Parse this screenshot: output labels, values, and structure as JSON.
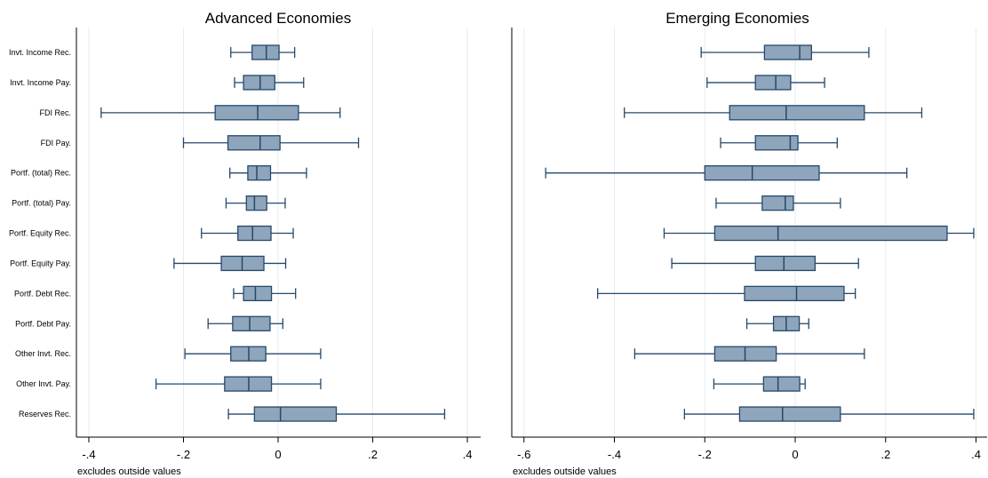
{
  "chart_data": [
    {
      "type": "boxplot",
      "title": "Advanced Economies",
      "note": "excludes outside values",
      "categories": [
        "Invt. Income Rec.",
        "Invt. Income Pay.",
        "FDI Rec.",
        "FDI Pay.",
        "Portf. (total) Rec.",
        "Portf. (total) Pay.",
        "Portf. Equity Rec.",
        "Portf. Equity Pay.",
        "Portf. Debt Rec.",
        "Portf. Debt Pay.",
        "Other Invt. Rec.",
        "Other Invt. Pay.",
        "Reserves Rec."
      ],
      "boxes": [
        {
          "whisker_low": -0.1,
          "q1": -0.055,
          "median": -0.025,
          "q3": 0.002,
          "whisker_high": 0.035
        },
        {
          "whisker_low": -0.092,
          "q1": -0.073,
          "median": -0.038,
          "q3": -0.007,
          "whisker_high": 0.054
        },
        {
          "whisker_low": -0.374,
          "q1": -0.133,
          "median": -0.043,
          "q3": 0.043,
          "whisker_high": 0.131
        },
        {
          "whisker_low": -0.2,
          "q1": -0.106,
          "median": -0.038,
          "q3": 0.004,
          "whisker_high": 0.17
        },
        {
          "whisker_low": -0.102,
          "q1": -0.064,
          "median": -0.045,
          "q3": -0.016,
          "whisker_high": 0.06
        },
        {
          "whisker_low": -0.11,
          "q1": -0.067,
          "median": -0.05,
          "q3": -0.024,
          "whisker_high": 0.015
        },
        {
          "whisker_low": -0.162,
          "q1": -0.085,
          "median": -0.054,
          "q3": -0.015,
          "whisker_high": 0.032
        },
        {
          "whisker_low": -0.22,
          "q1": -0.12,
          "median": -0.076,
          "q3": -0.03,
          "whisker_high": 0.016
        },
        {
          "whisker_low": -0.094,
          "q1": -0.073,
          "median": -0.048,
          "q3": -0.014,
          "whisker_high": 0.037
        },
        {
          "whisker_low": -0.148,
          "q1": -0.096,
          "median": -0.06,
          "q3": -0.017,
          "whisker_high": 0.01
        },
        {
          "whisker_low": -0.197,
          "q1": -0.1,
          "median": -0.062,
          "q3": -0.026,
          "whisker_high": 0.09
        },
        {
          "whisker_low": -0.258,
          "q1": -0.113,
          "median": -0.062,
          "q3": -0.014,
          "whisker_high": 0.09
        },
        {
          "whisker_low": -0.105,
          "q1": -0.05,
          "median": 0.005,
          "q3": 0.123,
          "whisker_high": 0.352
        }
      ],
      "x_ticks": [
        -0.4,
        -0.2,
        0,
        0.2,
        0.4
      ],
      "x_tick_labels": [
        "-.4",
        "-.2",
        "0",
        ".2",
        ".4"
      ],
      "xlim": [
        -0.42,
        0.42
      ],
      "grid": true
    },
    {
      "type": "boxplot",
      "title": "Emerging Economies",
      "note": "excludes outside values",
      "categories": [
        "Invt. Income Rec.",
        "Invt. Income Pay.",
        "FDI Rec.",
        "FDI Pay.",
        "Portf. (total) Rec.",
        "Portf. (total) Pay.",
        "Portf. Equity Rec.",
        "Portf. Equity Pay.",
        "Portf. Debt Rec.",
        "Portf. Debt Pay.",
        "Other Invt. Rec.",
        "Other Invt. Pay.",
        "Reserves Rec."
      ],
      "boxes": [
        {
          "whisker_low": -0.208,
          "q1": -0.068,
          "median": 0.01,
          "q3": 0.036,
          "whisker_high": 0.163
        },
        {
          "whisker_low": -0.195,
          "q1": -0.088,
          "median": -0.043,
          "q3": -0.01,
          "whisker_high": 0.065
        },
        {
          "whisker_low": -0.378,
          "q1": -0.145,
          "median": -0.02,
          "q3": 0.153,
          "whisker_high": 0.28
        },
        {
          "whisker_low": -0.165,
          "q1": -0.088,
          "median": -0.011,
          "q3": 0.006,
          "whisker_high": 0.093
        },
        {
          "whisker_low": -0.552,
          "q1": -0.2,
          "median": -0.095,
          "q3": 0.053,
          "whisker_high": 0.247
        },
        {
          "whisker_low": -0.175,
          "q1": -0.073,
          "median": -0.022,
          "q3": -0.004,
          "whisker_high": 0.1
        },
        {
          "whisker_low": -0.29,
          "q1": -0.178,
          "median": -0.038,
          "q3": 0.336,
          "whisker_high": 0.395
        },
        {
          "whisker_low": -0.273,
          "q1": -0.088,
          "median": -0.025,
          "q3": 0.044,
          "whisker_high": 0.14
        },
        {
          "whisker_low": -0.437,
          "q1": -0.112,
          "median": 0.003,
          "q3": 0.108,
          "whisker_high": 0.133
        },
        {
          "whisker_low": -0.107,
          "q1": -0.048,
          "median": -0.02,
          "q3": 0.009,
          "whisker_high": 0.03
        },
        {
          "whisker_low": -0.355,
          "q1": -0.178,
          "median": -0.111,
          "q3": -0.042,
          "whisker_high": 0.153
        },
        {
          "whisker_low": -0.18,
          "q1": -0.07,
          "median": -0.038,
          "q3": 0.01,
          "whisker_high": 0.022
        },
        {
          "whisker_low": -0.245,
          "q1": -0.123,
          "median": -0.028,
          "q3": 0.1,
          "whisker_high": 0.395
        }
      ],
      "x_ticks": [
        -0.6,
        -0.4,
        -0.2,
        0,
        0.2,
        0.4
      ],
      "x_tick_labels": [
        "-.6",
        "-.4",
        "-.2",
        "0",
        ".2",
        ".4"
      ],
      "xlim": [
        -0.63,
        0.42
      ],
      "grid": true
    }
  ],
  "colors": {
    "box_fill": "#8fa5bb",
    "box_stroke": "#24496b",
    "grid": "#e6ebf0",
    "axis": "#000000"
  }
}
